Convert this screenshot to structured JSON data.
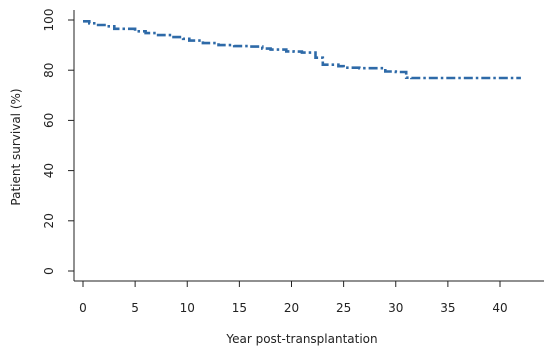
{
  "chart_data": {
    "type": "line",
    "title": "",
    "xlabel": "Year post-transplantation",
    "ylabel": "Patient survival (%)",
    "xlim": [
      0,
      42.5
    ],
    "ylim": [
      0,
      100
    ],
    "xticks": [
      0,
      5,
      10,
      15,
      20,
      25,
      30,
      35,
      40
    ],
    "yticks": [
      0,
      20,
      40,
      60,
      80,
      100
    ],
    "grid": false,
    "line_style": "dash-dot step",
    "colors": {
      "line": "#2e6aa8",
      "axis": "#222222"
    },
    "series": [
      {
        "step": true,
        "x": [
          0,
          0.6,
          1.2,
          2.2,
          3.0,
          5.0,
          6.0,
          7.2,
          8.5,
          9.6,
          10.2,
          11.5,
          13.0,
          14.5,
          16.0,
          17.2,
          18.0,
          19.5,
          20.2,
          21.0,
          22.3,
          23.0,
          24.5,
          25.0,
          26.5,
          28.0,
          29.0,
          30.0,
          31.0,
          31.5,
          35.0,
          40.0,
          42.0
        ],
        "y": [
          99.5,
          98.7,
          98.0,
          97.5,
          96.5,
          95.5,
          94.8,
          94.0,
          93.2,
          92.5,
          91.8,
          90.8,
          90.0,
          89.6,
          89.4,
          88.6,
          88.2,
          87.5,
          87.4,
          87.0,
          85.0,
          82.2,
          81.6,
          81.0,
          80.8,
          80.8,
          79.5,
          79.3,
          77.0,
          76.9,
          76.9,
          76.9,
          76.9
        ]
      }
    ]
  }
}
